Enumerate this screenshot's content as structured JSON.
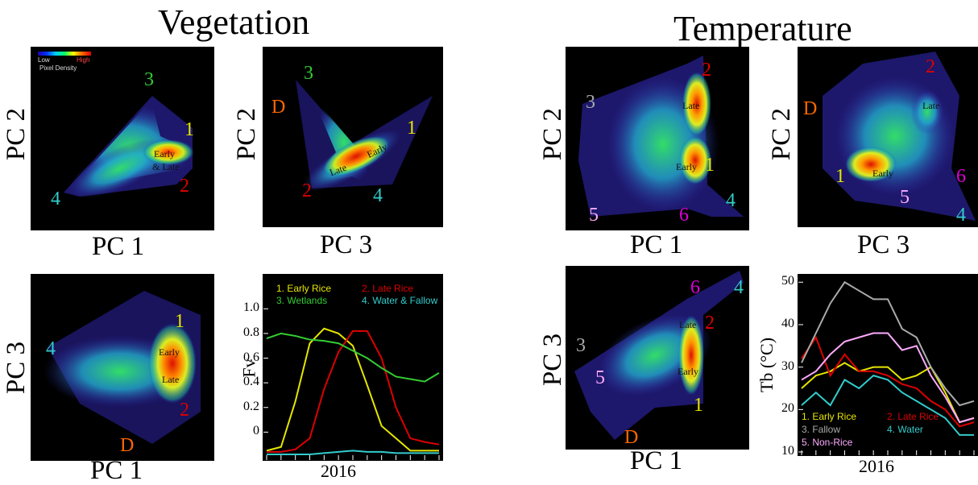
{
  "vegetation": {
    "title": "Vegetation",
    "colorbar": {
      "low": "Low",
      "high": "High",
      "caption": "Pixel Density"
    },
    "panels": [
      {
        "id": "veg-pc1-pc2",
        "xlabel": "PC 1",
        "ylabel": "PC 2",
        "labels": [
          {
            "t": "3",
            "c": "#33cc33"
          },
          {
            "t": "1",
            "c": "#e6e600"
          },
          {
            "t": "2",
            "c": "#dd0000"
          },
          {
            "t": "4",
            "c": "#33cccc"
          },
          {
            "t": "Early",
            "c": "#111"
          },
          {
            "t": "& Late",
            "c": "#111"
          }
        ]
      },
      {
        "id": "veg-pc3-pc2",
        "xlabel": "PC 3",
        "ylabel": "PC 2",
        "labels": [
          {
            "t": "3",
            "c": "#33cc33"
          },
          {
            "t": "D",
            "c": "#ff6600"
          },
          {
            "t": "1",
            "c": "#e6e600"
          },
          {
            "t": "2",
            "c": "#dd0000"
          },
          {
            "t": "4",
            "c": "#33cccc"
          },
          {
            "t": "Late",
            "c": "#111"
          },
          {
            "t": "Early",
            "c": "#111"
          }
        ]
      },
      {
        "id": "veg-pc1-pc3",
        "xlabel": "PC 1",
        "ylabel": "PC 3",
        "labels": [
          {
            "t": "4",
            "c": "#33cccc"
          },
          {
            "t": "1",
            "c": "#e6e600"
          },
          {
            "t": "2",
            "c": "#dd0000"
          },
          {
            "t": "D",
            "c": "#ff6600"
          },
          {
            "t": "Early",
            "c": "#111"
          },
          {
            "t": "Late",
            "c": "#111"
          }
        ]
      }
    ]
  },
  "temperature": {
    "title": "Temperature",
    "panels": [
      {
        "id": "temp-pc1-pc2",
        "xlabel": "PC 1",
        "ylabel": "PC 2",
        "labels": [
          {
            "t": "3",
            "c": "#aaaaaa"
          },
          {
            "t": "2",
            "c": "#dd0000"
          },
          {
            "t": "1",
            "c": "#e6e600"
          },
          {
            "t": "6",
            "c": "#dd00dd"
          },
          {
            "t": "4",
            "c": "#33cccc"
          },
          {
            "t": "5",
            "c": "#ffaaff"
          },
          {
            "t": "Late",
            "c": "#111"
          },
          {
            "t": "Early",
            "c": "#111"
          }
        ]
      },
      {
        "id": "temp-pc3-pc2",
        "xlabel": "PC 3",
        "ylabel": "PC 2",
        "labels": [
          {
            "t": "D",
            "c": "#ff6600"
          },
          {
            "t": "2",
            "c": "#dd0000"
          },
          {
            "t": "1",
            "c": "#e6e600"
          },
          {
            "t": "6",
            "c": "#dd00dd"
          },
          {
            "t": "5",
            "c": "#ffaaff"
          },
          {
            "t": "4",
            "c": "#33cccc"
          },
          {
            "t": "Late",
            "c": "#111"
          },
          {
            "t": "Early",
            "c": "#111"
          }
        ]
      },
      {
        "id": "temp-pc1-pc3",
        "xlabel": "PC 1",
        "ylabel": "PC 3",
        "labels": [
          {
            "t": "3",
            "c": "#aaaaaa"
          },
          {
            "t": "6",
            "c": "#dd00dd"
          },
          {
            "t": "4",
            "c": "#33cccc"
          },
          {
            "t": "2",
            "c": "#dd0000"
          },
          {
            "t": "5",
            "c": "#ffaaff"
          },
          {
            "t": "1",
            "c": "#e6e600"
          },
          {
            "t": "D",
            "c": "#ff6600"
          },
          {
            "t": "Late",
            "c": "#111"
          },
          {
            "t": "Early",
            "c": "#111"
          }
        ]
      }
    ]
  },
  "chart_data": [
    {
      "type": "line",
      "title": "",
      "xlabel": "2016",
      "ylabel": "Fv",
      "ylim": [
        -0.2,
        1.25
      ],
      "yticks": [
        0.0,
        0.2,
        0.4,
        0.6,
        0.8,
        1.0
      ],
      "ytick_labels": [
        "0",
        "0.2",
        "0.4",
        "0.6",
        "0.8",
        "1.0"
      ],
      "x": [
        0,
        1,
        2,
        3,
        4,
        5,
        6,
        7,
        8,
        9,
        10,
        11,
        12
      ],
      "series": [
        {
          "name": "1. Early Rice",
          "color": "#e6e600",
          "values": [
            -0.15,
            -0.12,
            0.25,
            0.72,
            0.84,
            0.8,
            0.7,
            0.38,
            0.05,
            -0.05,
            -0.15,
            -0.15,
            -0.15
          ]
        },
        {
          "name": "2. Late Rice",
          "color": "#dd0000",
          "values": [
            -0.16,
            -0.16,
            -0.14,
            -0.05,
            0.35,
            0.65,
            0.82,
            0.82,
            0.6,
            0.2,
            -0.05,
            -0.08,
            -0.1
          ]
        },
        {
          "name": "3. Wetlands",
          "color": "#33cc33",
          "values": [
            0.76,
            0.8,
            0.78,
            0.75,
            0.74,
            0.72,
            0.66,
            0.6,
            0.52,
            0.45,
            0.43,
            0.41,
            0.48
          ]
        },
        {
          "name": "4. Water & Fallow",
          "color": "#33cccc",
          "values": [
            -0.18,
            -0.18,
            -0.18,
            -0.18,
            -0.17,
            -0.16,
            -0.15,
            -0.16,
            -0.16,
            -0.17,
            -0.17,
            -0.17,
            -0.17
          ]
        }
      ]
    },
    {
      "type": "line",
      "title": "",
      "xlabel": "2016",
      "ylabel": "Tb (°C)",
      "ylim": [
        10,
        51
      ],
      "yticks": [
        10,
        20,
        30,
        40,
        50
      ],
      "x": [
        0,
        1,
        2,
        3,
        4,
        5,
        6,
        7,
        8,
        9,
        10,
        11,
        12
      ],
      "series": [
        {
          "name": "1. Early Rice",
          "color": "#e6e600",
          "values": [
            25,
            28,
            29,
            31,
            29,
            30,
            30,
            27,
            28,
            30,
            24,
            17,
            18
          ]
        },
        {
          "name": "2. Late Rice",
          "color": "#dd0000",
          "values": [
            32,
            37,
            28,
            33,
            29,
            29,
            28,
            26,
            25,
            22,
            20,
            16,
            17
          ]
        },
        {
          "name": "3. Fallow",
          "color": "#aaaaaa",
          "values": [
            31,
            38,
            45,
            50,
            48,
            46,
            46,
            39,
            37,
            30,
            25,
            21,
            22
          ]
        },
        {
          "name": "4. Water",
          "color": "#33cccc",
          "values": [
            21,
            24,
            21,
            27,
            25,
            28,
            27,
            24,
            22,
            20,
            18,
            14,
            14
          ]
        },
        {
          "name": "5. Non-Rice",
          "color": "#ffaaff",
          "values": [
            27,
            29,
            33,
            36,
            37,
            38,
            38,
            34,
            35,
            28,
            23,
            17,
            18
          ]
        }
      ]
    }
  ]
}
